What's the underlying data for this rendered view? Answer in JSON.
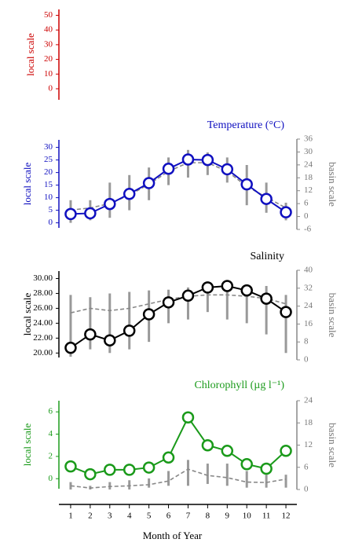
{
  "chart_data": [
    {
      "type": "empty",
      "ylabel": "local scale",
      "color": "#cc0000",
      "ylim": [
        -7.5,
        54
      ],
      "yticks": [
        0,
        10,
        20,
        30,
        40,
        50
      ]
    },
    {
      "type": "line",
      "title": "Temperature (°C)",
      "ylabel": "local scale",
      "y2label": "basin scale",
      "color": "#1010c0",
      "ylim": [
        -2,
        33
      ],
      "yticks": [
        0,
        5,
        10,
        15,
        20,
        25,
        30
      ],
      "y2lim": [
        -6,
        36
      ],
      "y2ticks": [
        -6,
        0,
        6,
        12,
        18,
        24,
        30,
        36
      ],
      "xlim": [
        0.4,
        12.56
      ],
      "x": [
        1,
        2,
        3,
        4,
        5,
        6,
        7,
        8,
        9,
        10,
        11,
        12
      ],
      "series": [
        {
          "color": "#1010c0",
          "values": [
            3.5,
            3.8,
            7.5,
            11.5,
            15.8,
            21.5,
            25.2,
            25,
            21.3,
            15.3,
            9.5,
            4.2
          ]
        },
        {
          "color": "#888888",
          "axis": "y2",
          "style": "dashed",
          "values": [
            3,
            4,
            6,
            10,
            15,
            21,
            25,
            25,
            21,
            14,
            9,
            4
          ]
        }
      ],
      "spread": {
        "color": "#999999",
        "low": [
          0,
          1,
          2,
          5,
          9,
          15,
          18,
          19,
          16,
          7,
          4,
          1
        ],
        "high": [
          9,
          9,
          16,
          19,
          22,
          26,
          29,
          28,
          26,
          23,
          16,
          8
        ]
      }
    },
    {
      "type": "line",
      "title": "Salinity",
      "ylabel": "local scale",
      "y2label": "basin scale",
      "color": "#000000",
      "ylim": [
        19.4,
        31
      ],
      "yticks": [
        {
          "value": 20,
          "label": "20.00"
        },
        {
          "value": 22,
          "label": "22.00"
        },
        {
          "value": 24,
          "label": "24.00"
        },
        {
          "value": 26,
          "label": "26.00"
        },
        {
          "value": 28,
          "label": "28.00"
        },
        {
          "value": 30,
          "label": "30.00"
        }
      ],
      "y2lim": [
        0,
        40
      ],
      "y2ticks": [
        0,
        8,
        16,
        24,
        32,
        40
      ],
      "xlim": [
        0.4,
        12.56
      ],
      "x": [
        1,
        2,
        3,
        4,
        5,
        6,
        7,
        8,
        9,
        10,
        11,
        12
      ],
      "series": [
        {
          "color": "#000000",
          "values": [
            20.7,
            22.5,
            21.7,
            23,
            25.2,
            26.8,
            27.7,
            28.8,
            29,
            28.4,
            27.3,
            25.5
          ]
        },
        {
          "color": "#888888",
          "axis": "y2",
          "style": "dashed",
          "values": [
            21,
            23,
            22,
            23,
            25,
            27,
            28.4,
            29,
            29,
            28.4,
            27.4,
            25
          ]
        }
      ],
      "spread": {
        "color": "#999999",
        "low": [
          19.5,
          20.5,
          20,
          20.5,
          21.5,
          24,
          24.5,
          25.5,
          24.5,
          24,
          22.5,
          20
        ],
        "high": [
          27.8,
          27.5,
          28,
          28.2,
          28.4,
          28.5,
          28.8,
          29.5,
          29.5,
          29.2,
          29,
          27.8
        ]
      }
    },
    {
      "type": "line",
      "title": "Chlorophyll (µg l⁻¹)",
      "ylabel": "local scale",
      "y2label": "basin scale",
      "color": "#1a9a1a",
      "ylim": [
        -0.9,
        7
      ],
      "yticks": [
        0,
        2,
        4,
        6
      ],
      "y2lim": [
        0,
        24
      ],
      "y2ticks": [
        0,
        6,
        12,
        18,
        24
      ],
      "xlim": [
        0.4,
        12.56
      ],
      "x": [
        1,
        2,
        3,
        4,
        5,
        6,
        7,
        8,
        9,
        10,
        11,
        12
      ],
      "series": [
        {
          "color": "#1a9a1a",
          "values": [
            1.1,
            0.4,
            0.8,
            0.8,
            1,
            1.9,
            5.5,
            3,
            2.5,
            1.3,
            0.9,
            2.5
          ]
        },
        {
          "color": "#888888",
          "axis": "y2",
          "style": "dashed",
          "values": [
            1,
            0.4,
            0.8,
            1,
            1.3,
            2.3,
            5.5,
            3.8,
            3.2,
            2,
            1.9,
            2.8
          ]
        }
      ],
      "spread": {
        "color": "#999999",
        "axis": "y2",
        "low": [
          0,
          0,
          0,
          0,
          0.5,
          1,
          1,
          1.5,
          1,
          0.5,
          0.5,
          0.5
        ],
        "high": [
          2,
          1,
          2,
          2.5,
          3,
          5,
          8,
          7,
          7,
          5,
          4,
          4
        ]
      },
      "xlabel": "Month of Year",
      "xticks": [
        1,
        2,
        3,
        4,
        5,
        6,
        7,
        8,
        9,
        10,
        11,
        12
      ]
    }
  ]
}
